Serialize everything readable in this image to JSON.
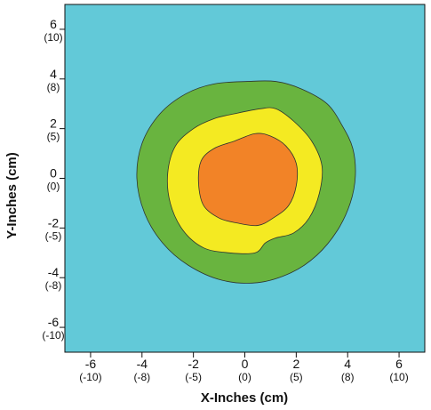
{
  "chart_data": {
    "type": "heatmap",
    "subtype": "filled-contour",
    "xlabel": "X-Inches (cm)",
    "ylabel": "Y-Inches (cm)",
    "xlim": [
      -7,
      7
    ],
    "ylim": [
      -7,
      7
    ],
    "x_ticks": [
      {
        "value": -6,
        "label": "-6",
        "sublabel": "(-10)"
      },
      {
        "value": -4,
        "label": "-4",
        "sublabel": "(-8)"
      },
      {
        "value": -2,
        "label": "-2",
        "sublabel": "(-5)"
      },
      {
        "value": 0,
        "label": "0",
        "sublabel": "(0)"
      },
      {
        "value": 2,
        "label": "2",
        "sublabel": "(5)"
      },
      {
        "value": 4,
        "label": "4",
        "sublabel": "(8)"
      },
      {
        "value": 6,
        "label": "6",
        "sublabel": "(10)"
      }
    ],
    "y_ticks": [
      {
        "value": 6,
        "label": "6",
        "sublabel": "(10)"
      },
      {
        "value": 4,
        "label": "4",
        "sublabel": "(8)"
      },
      {
        "value": 2,
        "label": "2",
        "sublabel": "(5)"
      },
      {
        "value": 0,
        "label": "0",
        "sublabel": "(0)"
      },
      {
        "value": -2,
        "label": "-2",
        "sublabel": "(-5)"
      },
      {
        "value": -4,
        "label": "-4",
        "sublabel": "(-8)"
      },
      {
        "value": -6,
        "label": "-6",
        "sublabel": "(-10)"
      }
    ],
    "background_color": "#62c9d8",
    "grid": false,
    "regions": [
      {
        "color": "#69b43f",
        "points": [
          [
            0.1,
            3.9
          ],
          [
            1.2,
            3.9
          ],
          [
            2.2,
            3.6
          ],
          [
            3.2,
            3.0
          ],
          [
            3.8,
            2.1
          ],
          [
            4.2,
            1.2
          ],
          [
            4.3,
            0.1
          ],
          [
            4.1,
            -1.0
          ],
          [
            3.6,
            -2.1
          ],
          [
            2.8,
            -3.1
          ],
          [
            1.8,
            -3.8
          ],
          [
            0.5,
            -4.2
          ],
          [
            -0.9,
            -4.1
          ],
          [
            -2.2,
            -3.5
          ],
          [
            -3.2,
            -2.6
          ],
          [
            -3.9,
            -1.4
          ],
          [
            -4.2,
            0.0
          ],
          [
            -4.0,
            1.4
          ],
          [
            -3.3,
            2.6
          ],
          [
            -2.3,
            3.4
          ],
          [
            -1.2,
            3.8
          ]
        ]
      },
      {
        "color": "#f4ea22",
        "points": [
          [
            -0.4,
            2.6
          ],
          [
            0.6,
            2.8
          ],
          [
            1.2,
            2.8
          ],
          [
            1.9,
            2.3
          ],
          [
            2.6,
            1.5
          ],
          [
            3.0,
            0.5
          ],
          [
            2.9,
            -0.6
          ],
          [
            2.5,
            -1.6
          ],
          [
            1.9,
            -2.2
          ],
          [
            1.2,
            -2.4
          ],
          [
            0.8,
            -2.6
          ],
          [
            0.4,
            -3.0
          ],
          [
            -0.6,
            -3.0
          ],
          [
            -1.6,
            -2.8
          ],
          [
            -2.4,
            -2.1
          ],
          [
            -2.9,
            -1.0
          ],
          [
            -3.0,
            0.2
          ],
          [
            -2.7,
            1.3
          ],
          [
            -2.0,
            2.0
          ],
          [
            -1.2,
            2.4
          ]
        ]
      },
      {
        "color": "#f28327",
        "points": [
          [
            -0.4,
            1.5
          ],
          [
            0.4,
            1.8
          ],
          [
            1.0,
            1.7
          ],
          [
            1.6,
            1.3
          ],
          [
            2.0,
            0.6
          ],
          [
            2.0,
            -0.3
          ],
          [
            1.7,
            -1.1
          ],
          [
            1.1,
            -1.6
          ],
          [
            0.5,
            -1.9
          ],
          [
            -0.3,
            -1.8
          ],
          [
            -1.0,
            -1.6
          ],
          [
            -1.6,
            -1.1
          ],
          [
            -1.8,
            -0.2
          ],
          [
            -1.7,
            0.7
          ],
          [
            -1.2,
            1.2
          ]
        ]
      }
    ]
  }
}
